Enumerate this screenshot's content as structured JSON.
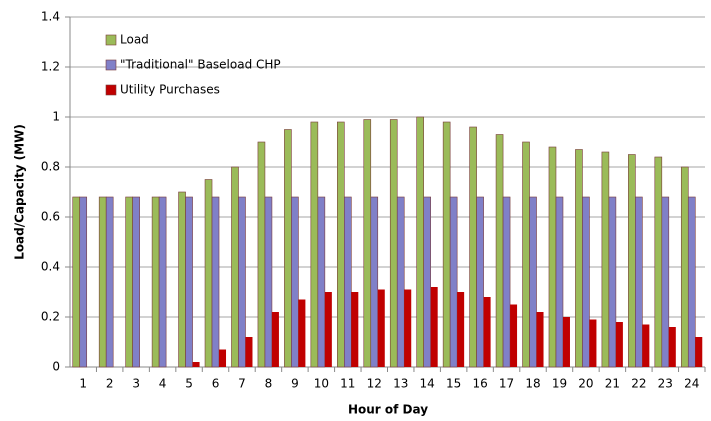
{
  "chart_data": {
    "type": "bar",
    "x_label": "Hour of Day",
    "y_label": "Load/Capacity (MW)",
    "categories": [
      "1",
      "2",
      "3",
      "4",
      "5",
      "6",
      "7",
      "8",
      "9",
      "10",
      "11",
      "12",
      "13",
      "14",
      "15",
      "16",
      "17",
      "18",
      "19",
      "20",
      "21",
      "22",
      "23",
      "24"
    ],
    "series": [
      {
        "name": "Load",
        "color": "#9bbb59",
        "values": [
          0.68,
          0.68,
          0.68,
          0.68,
          0.7,
          0.75,
          0.8,
          0.9,
          0.95,
          0.98,
          0.98,
          0.99,
          0.99,
          1.0,
          0.98,
          0.96,
          0.93,
          0.9,
          0.88,
          0.87,
          0.86,
          0.85,
          0.84,
          0.8
        ]
      },
      {
        "name": "\"Traditional\" Baseload CHP",
        "color": "#8080c8",
        "values": [
          0.68,
          0.68,
          0.68,
          0.68,
          0.68,
          0.68,
          0.68,
          0.68,
          0.68,
          0.68,
          0.68,
          0.68,
          0.68,
          0.68,
          0.68,
          0.68,
          0.68,
          0.68,
          0.68,
          0.68,
          0.68,
          0.68,
          0.68,
          0.68
        ]
      },
      {
        "name": "Utility Purchases",
        "color": "#c00000",
        "values": [
          0,
          0,
          0,
          0,
          0.02,
          0.07,
          0.12,
          0.22,
          0.27,
          0.3,
          0.3,
          0.31,
          0.31,
          0.32,
          0.3,
          0.28,
          0.25,
          0.22,
          0.2,
          0.19,
          0.18,
          0.17,
          0.16,
          0.12
        ]
      }
    ],
    "ylim": [
      0,
      1.4
    ],
    "yticks": [
      0,
      0.2,
      0.4,
      0.6,
      0.8,
      1,
      1.2,
      1.4
    ],
    "grid": true,
    "legend": "top-left"
  }
}
